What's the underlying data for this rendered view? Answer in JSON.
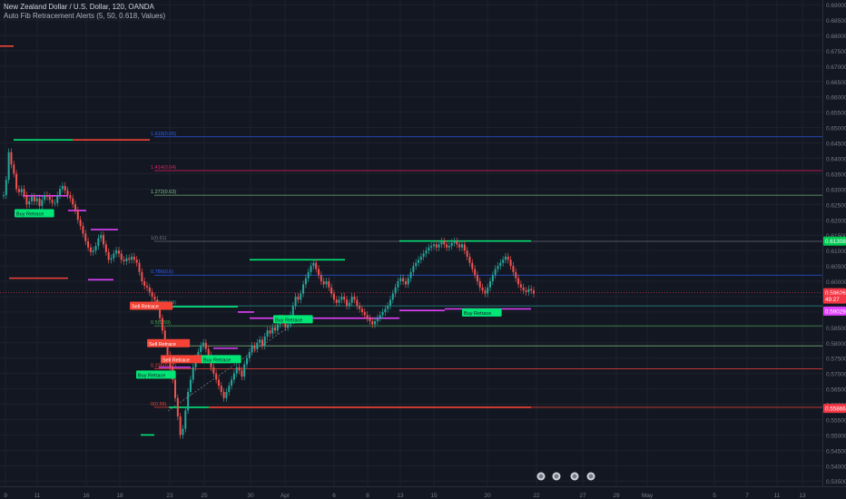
{
  "header": {
    "symbol_line": "New Zealand Dollar / U.S. Dollar, 120, OANDA",
    "indicator_line": "Auto Fib Retracement Alerts (5, 50, 0.618, Values)"
  },
  "colors": {
    "background": "#131722",
    "grid": "#1e222d",
    "up_candle": "#26a69a",
    "down_candle": "#ef5350",
    "buy_retrace": "#00e676",
    "sell_retrace": "#f44336",
    "resistance_level": "#e040fb",
    "axis_text": "#787b86"
  },
  "chart_data": {
    "type": "candlestick",
    "y_axis": {
      "ticks": [
        "0.69000",
        "0.68500",
        "0.68000",
        "0.67500",
        "0.67000",
        "0.66500",
        "0.66000",
        "0.65500",
        "0.65000",
        "0.64500",
        "0.64000",
        "0.63500",
        "0.63000",
        "0.62500",
        "0.62000",
        "0.61500",
        "0.61000",
        "0.60500",
        "0.60000",
        "0.59500",
        "0.59000",
        "0.58500",
        "0.58000",
        "0.57500",
        "0.57000",
        "0.56500",
        "0.56000",
        "0.55500",
        "0.55000",
        "0.54500",
        "0.54000",
        "0.53500"
      ],
      "range": [
        0.5333,
        0.6915
      ]
    },
    "x_axis": {
      "ticks": [
        "9",
        "11",
        "16",
        "18",
        "23",
        "25",
        "30",
        "Apr",
        "6",
        "8",
        "13",
        "15",
        "20",
        "22",
        "27",
        "29",
        "May",
        "5",
        "7",
        "11",
        "13"
      ]
    },
    "fib_levels": [
      {
        "label": "1.618(0.65)",
        "value": 0.647,
        "color": "#2962ff"
      },
      {
        "label": "1.414(0.64)",
        "value": 0.636,
        "color": "#e91e63"
      },
      {
        "label": "1.272(0.63)",
        "value": 0.628,
        "color": "#81c784"
      },
      {
        "label": "1(0.61)",
        "value": 0.613,
        "color": "#787b86"
      },
      {
        "label": "0.786(0.6)",
        "value": 0.602,
        "color": "#2962ff"
      },
      {
        "label": "0.618(0.59)",
        "value": 0.592,
        "color": "#26a69a"
      },
      {
        "label": "0.5(0.59)",
        "value": 0.5855,
        "color": "#4caf50"
      },
      {
        "label": "0.382(0.58)",
        "value": 0.579,
        "color": "#81c784"
      },
      {
        "label": "0.236(0.57)",
        "value": 0.5715,
        "color": "#f44336"
      },
      {
        "label": "0(0.56)",
        "value": 0.559,
        "color": "#f44336"
      }
    ],
    "price_tags": [
      {
        "text": "0.61308",
        "value": 0.61308,
        "color": "#00c853"
      },
      {
        "text": "0.59626",
        "value": 0.59626,
        "color": "#f23645"
      },
      {
        "text": "49:27",
        "value": 0.5942,
        "color": "#f23645"
      },
      {
        "text": "0.59029",
        "value": 0.59029,
        "color": "#e040fb"
      },
      {
        "text": "0.55866",
        "value": 0.55866,
        "color": "#f23645"
      }
    ],
    "signals": [
      {
        "text": "Buy Retrace",
        "type": "buy",
        "bar": 8,
        "value": 0.622
      },
      {
        "text": "Sell Retrace",
        "type": "sell",
        "bar": 81,
        "value": 0.5919
      },
      {
        "text": "Sell Retrace",
        "type": "sell",
        "bar": 91,
        "value": 0.5797
      },
      {
        "text": "Sell Retrace",
        "type": "sell",
        "bar": 98,
        "value": 0.5745
      },
      {
        "text": "Buy Retrace",
        "type": "buy",
        "bar": 84,
        "value": 0.5695
      },
      {
        "text": "Buy Retrace",
        "type": "buy",
        "bar": 130,
        "value": 0.5745
      },
      {
        "text": "Buy Retrace",
        "type": "buy",
        "bar": 177,
        "value": 0.5875
      },
      {
        "text": "Buy Retrace",
        "type": "buy",
        "bar": 289,
        "value": 0.5897
      }
    ],
    "close_sequence": [
      0.628,
      0.633,
      0.642,
      0.638,
      0.635,
      0.63,
      0.629,
      0.63,
      0.628,
      0.625,
      0.626,
      0.6275,
      0.626,
      0.627,
      0.6245,
      0.6265,
      0.628,
      0.6275,
      0.6265,
      0.6255,
      0.6255,
      0.628,
      0.63,
      0.631,
      0.6295,
      0.628,
      0.627,
      0.625,
      0.623,
      0.62,
      0.618,
      0.6155,
      0.613,
      0.611,
      0.6095,
      0.61,
      0.6115,
      0.614,
      0.615,
      0.612,
      0.6095,
      0.607,
      0.6075,
      0.609,
      0.61,
      0.609,
      0.607,
      0.6065,
      0.6075,
      0.607,
      0.608,
      0.607,
      0.606,
      0.603,
      0.6,
      0.5985,
      0.598,
      0.5965,
      0.595,
      0.594,
      0.592,
      0.588,
      0.584,
      0.58,
      0.576,
      0.572,
      0.568,
      0.562,
      0.556,
      0.55,
      0.552,
      0.558,
      0.564,
      0.568,
      0.572,
      0.575,
      0.577,
      0.579,
      0.58,
      0.578,
      0.576,
      0.572,
      0.57,
      0.568,
      0.566,
      0.564,
      0.562,
      0.564,
      0.566,
      0.568,
      0.57,
      0.572,
      0.571,
      0.569,
      0.573,
      0.575,
      0.577,
      0.579,
      0.578,
      0.58,
      0.581,
      0.579,
      0.582,
      0.584,
      0.583,
      0.585,
      0.584,
      0.586,
      0.588,
      0.587,
      0.585,
      0.586,
      0.589,
      0.592,
      0.595,
      0.594,
      0.596,
      0.599,
      0.601,
      0.603,
      0.605,
      0.606,
      0.604,
      0.602,
      0.6,
      0.599,
      0.6,
      0.598,
      0.596,
      0.594,
      0.593,
      0.594,
      0.595,
      0.594,
      0.592,
      0.593,
      0.595,
      0.594,
      0.592,
      0.591,
      0.59,
      0.589,
      0.588,
      0.587,
      0.586,
      0.587,
      0.588,
      0.589,
      0.59,
      0.591,
      0.592,
      0.594,
      0.596,
      0.598,
      0.6,
      0.601,
      0.6,
      0.599,
      0.601,
      0.603,
      0.605,
      0.606,
      0.607,
      0.608,
      0.609,
      0.61,
      0.611,
      0.6115,
      0.612,
      0.611,
      0.612,
      0.613,
      0.612,
      0.611,
      0.6115,
      0.6125,
      0.613,
      0.612,
      0.611,
      0.612,
      0.61,
      0.608,
      0.606,
      0.604,
      0.602,
      0.6,
      0.598,
      0.597,
      0.596,
      0.598,
      0.6,
      0.602,
      0.604,
      0.605,
      0.606,
      0.607,
      0.608,
      0.607,
      0.605,
      0.603,
      0.601,
      0.599,
      0.598,
      0.597,
      0.5965,
      0.5975,
      0.597,
      0.596
    ]
  }
}
